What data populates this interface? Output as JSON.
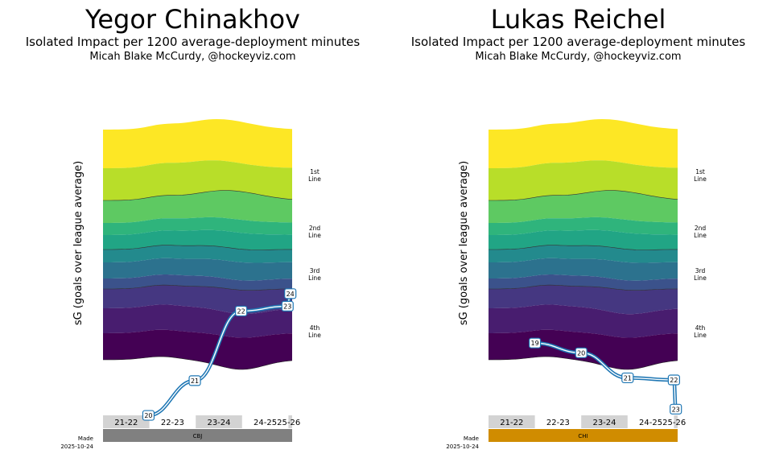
{
  "colors": {
    "bands": [
      "#fde725",
      "#b8de29",
      "#5ec962",
      "#2fb47c",
      "#21a585",
      "#238a8d",
      "#2c728e",
      "#3b528b",
      "#453781",
      "#481d6f",
      "#440154"
    ],
    "line": "#1f77b4",
    "season_box": "#d3d3d3",
    "divider": "#333333"
  },
  "made_label": "Made",
  "made_date": "2025-10-24",
  "chart_data": [
    {
      "type": "line",
      "player": "Yegor Chinakhov",
      "title": "Isolated Impact per 1200 average-deployment minutes",
      "credit": "Micah Blake McCurdy, @hockeyviz.com",
      "ylabel": "sG (goals over league average)",
      "line_labels": [
        "1st Line",
        "2nd Line",
        "3rd Line",
        "4th Line"
      ],
      "seasons": [
        "21-22",
        "22-23",
        "23-24",
        "24-25",
        "25-26"
      ],
      "shaded_seasons": [
        true,
        false,
        true,
        false,
        true
      ],
      "season_weights": [
        1.0,
        1.0,
        1.0,
        1.0,
        0.08
      ],
      "team": "CBJ",
      "team_color": "#808080",
      "points": [
        {
          "label": "20",
          "t": 0.98,
          "v": -1.12
        },
        {
          "label": "21",
          "t": 1.98,
          "v": -0.62
        },
        {
          "label": "22",
          "t": 2.98,
          "v": 0.38
        },
        {
          "label": "23",
          "t": 3.98,
          "v": 0.45
        },
        {
          "label": "24",
          "t": 4.04,
          "v": 0.63
        }
      ]
    },
    {
      "type": "line",
      "player": "Lukas Reichel",
      "title": "Isolated Impact per 1200 average-deployment minutes",
      "credit": "Micah Blake McCurdy, @hockeyviz.com",
      "ylabel": "sG (goals over league average)",
      "line_labels": [
        "1st Line",
        "2nd Line",
        "3rd Line",
        "4th Line"
      ],
      "seasons": [
        "21-22",
        "22-23",
        "23-24",
        "24-25",
        "25-26"
      ],
      "shaded_seasons": [
        true,
        false,
        true,
        false,
        true
      ],
      "season_weights": [
        1.0,
        1.0,
        1.0,
        1.0,
        0.08
      ],
      "team": "CHI",
      "team_color": "#d08c00",
      "points": [
        {
          "label": "19",
          "t": 1.0,
          "v": -0.08
        },
        {
          "label": "20",
          "t": 2.0,
          "v": -0.22
        },
        {
          "label": "21",
          "t": 3.0,
          "v": -0.58
        },
        {
          "label": "22",
          "t": 4.0,
          "v": -0.61
        },
        {
          "label": "23",
          "t": 4.04,
          "v": -1.03
        }
      ]
    }
  ]
}
